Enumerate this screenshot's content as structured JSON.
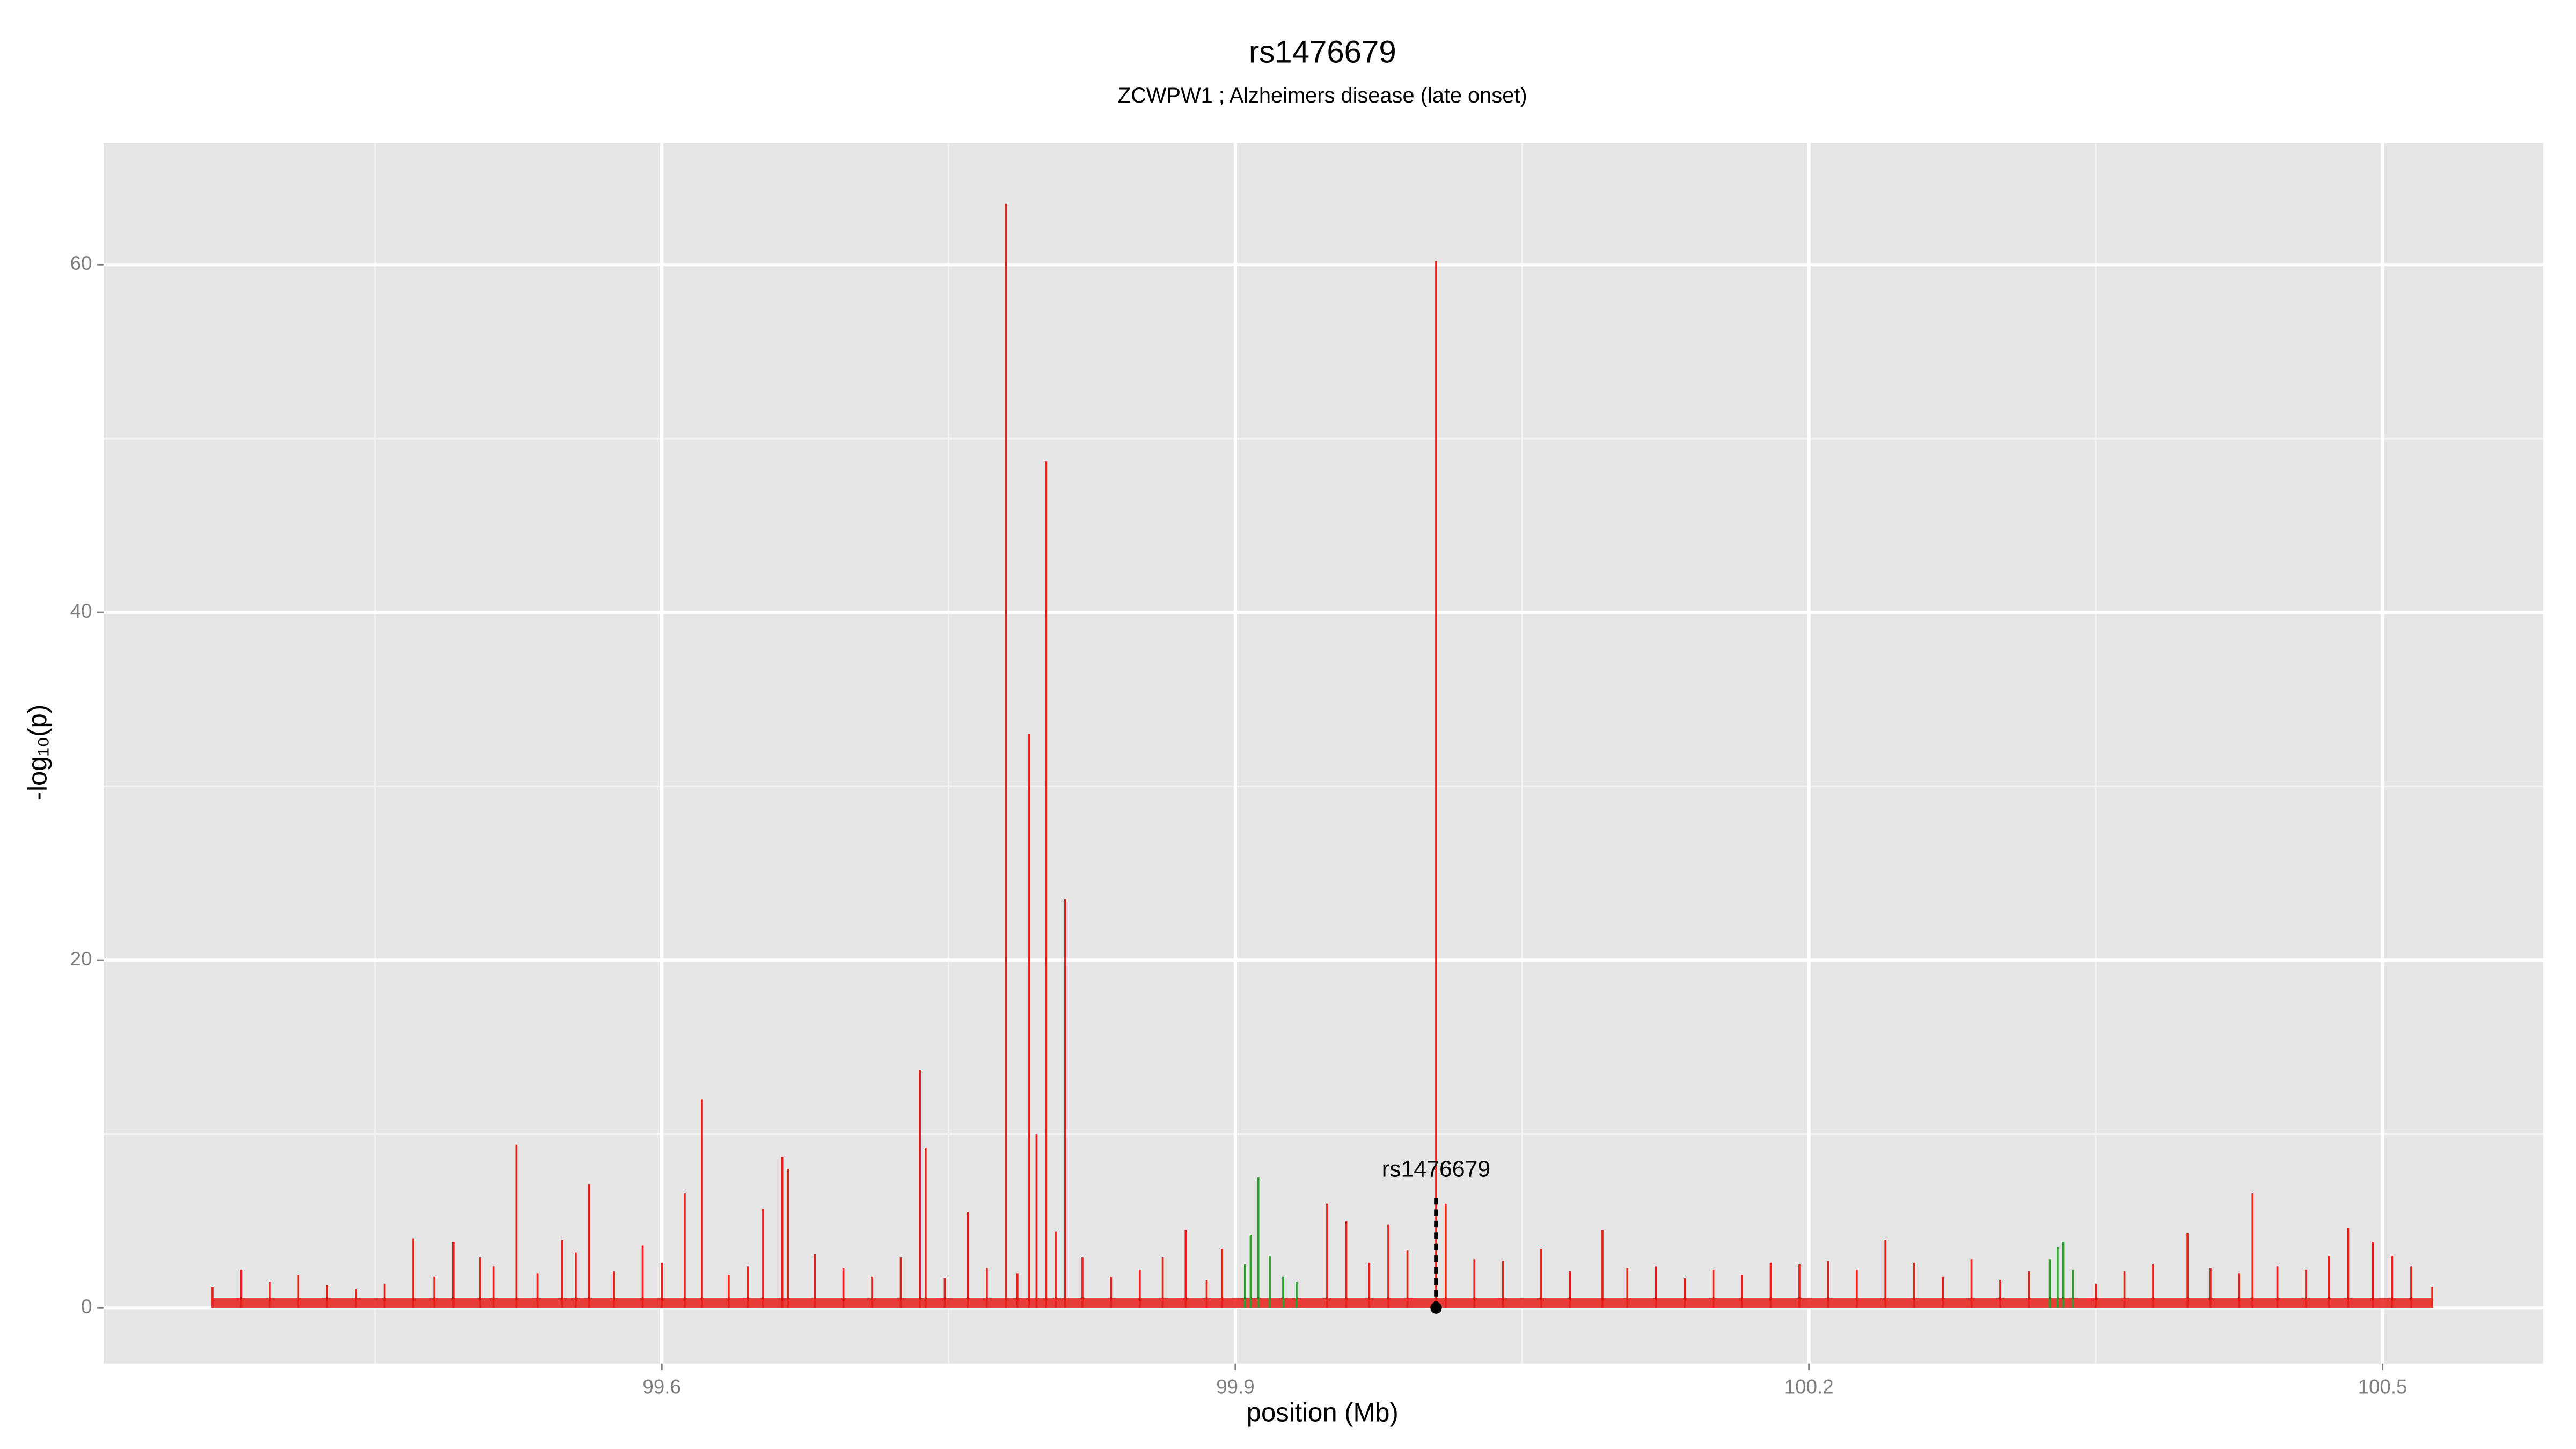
{
  "chart_data": {
    "type": "spike",
    "title": "rs1476679",
    "subtitle": "ZCWPW1 ; Alzheimers disease (late onset)",
    "x_label": "position (Mb)",
    "y_label": "-log₁₀(p)",
    "xlim": [
      99.308,
      100.584
    ],
    "ylim": [
      -3.2,
      67
    ],
    "xticks": [
      99.6,
      99.9,
      100.2,
      100.5
    ],
    "yticks": [
      0,
      20,
      40,
      60
    ],
    "grid": true,
    "minor_grid": true,
    "series": [
      {
        "color": "#e8201a",
        "x": [
          99.365,
          99.38,
          99.395,
          99.41,
          99.425,
          99.44,
          99.455,
          99.47,
          99.481,
          99.491,
          99.505,
          99.512,
          99.524,
          99.535,
          99.548,
          99.555,
          99.562,
          99.575,
          99.59,
          99.6,
          99.612,
          99.621,
          99.635,
          99.645,
          99.653,
          99.663,
          99.666,
          99.68,
          99.695,
          99.71,
          99.725,
          99.735,
          99.738,
          99.748,
          99.76,
          99.77,
          99.78,
          99.786,
          99.792,
          99.796,
          99.801,
          99.806,
          99.811,
          99.82,
          99.835,
          99.85,
          99.862,
          99.874,
          99.885,
          99.893,
          99.948,
          99.958,
          99.97,
          99.98,
          99.99,
          100.005,
          100.01,
          100.025,
          100.04,
          100.06,
          100.075,
          100.092,
          100.105,
          100.12,
          100.135,
          100.15,
          100.165,
          100.18,
          100.195,
          100.21,
          100.225,
          100.24,
          100.255,
          100.27,
          100.285,
          100.3,
          100.315,
          100.35,
          100.365,
          100.38,
          100.398,
          100.41,
          100.425,
          100.432,
          100.445,
          100.46,
          100.472,
          100.482,
          100.495,
          100.505,
          100.515,
          100.526
        ],
        "values": [
          1.2,
          2.2,
          1.5,
          1.9,
          1.3,
          1.1,
          1.4,
          4.0,
          1.8,
          3.8,
          2.9,
          2.4,
          9.4,
          2.0,
          3.9,
          3.2,
          7.1,
          2.1,
          3.6,
          2.6,
          6.6,
          12.0,
          1.9,
          2.4,
          5.7,
          8.7,
          8.0,
          3.1,
          2.3,
          1.8,
          2.9,
          13.7,
          9.2,
          1.7,
          5.5,
          2.3,
          63.5,
          2.0,
          33.0,
          10.0,
          48.7,
          4.4,
          23.5,
          2.9,
          1.8,
          2.2,
          2.9,
          4.5,
          1.6,
          3.4,
          6.0,
          5.0,
          2.6,
          4.8,
          3.3,
          60.2,
          6.0,
          2.8,
          2.7,
          3.4,
          2.1,
          4.5,
          2.3,
          2.4,
          1.7,
          2.2,
          1.9,
          2.6,
          2.5,
          2.7,
          2.2,
          3.9,
          2.6,
          1.8,
          2.8,
          1.6,
          2.1,
          1.4,
          2.1,
          2.5,
          4.3,
          2.3,
          2.0,
          6.6,
          2.4,
          2.2,
          3.0,
          4.6,
          3.8,
          3.0,
          2.4,
          1.2
        ]
      },
      {
        "color": "#2ca02c",
        "x": [
          99.905,
          99.908,
          99.912,
          99.918,
          99.925,
          99.932,
          100.326,
          100.33,
          100.333,
          100.338
        ],
        "values": [
          2.5,
          4.2,
          7.5,
          3.0,
          1.8,
          1.5,
          2.8,
          3.5,
          3.8,
          2.2
        ]
      }
    ],
    "annotation": {
      "text": "rs1476679",
      "x": 100.005,
      "y": 7.9
    },
    "marker": {
      "x": 100.005,
      "y": 0
    }
  }
}
